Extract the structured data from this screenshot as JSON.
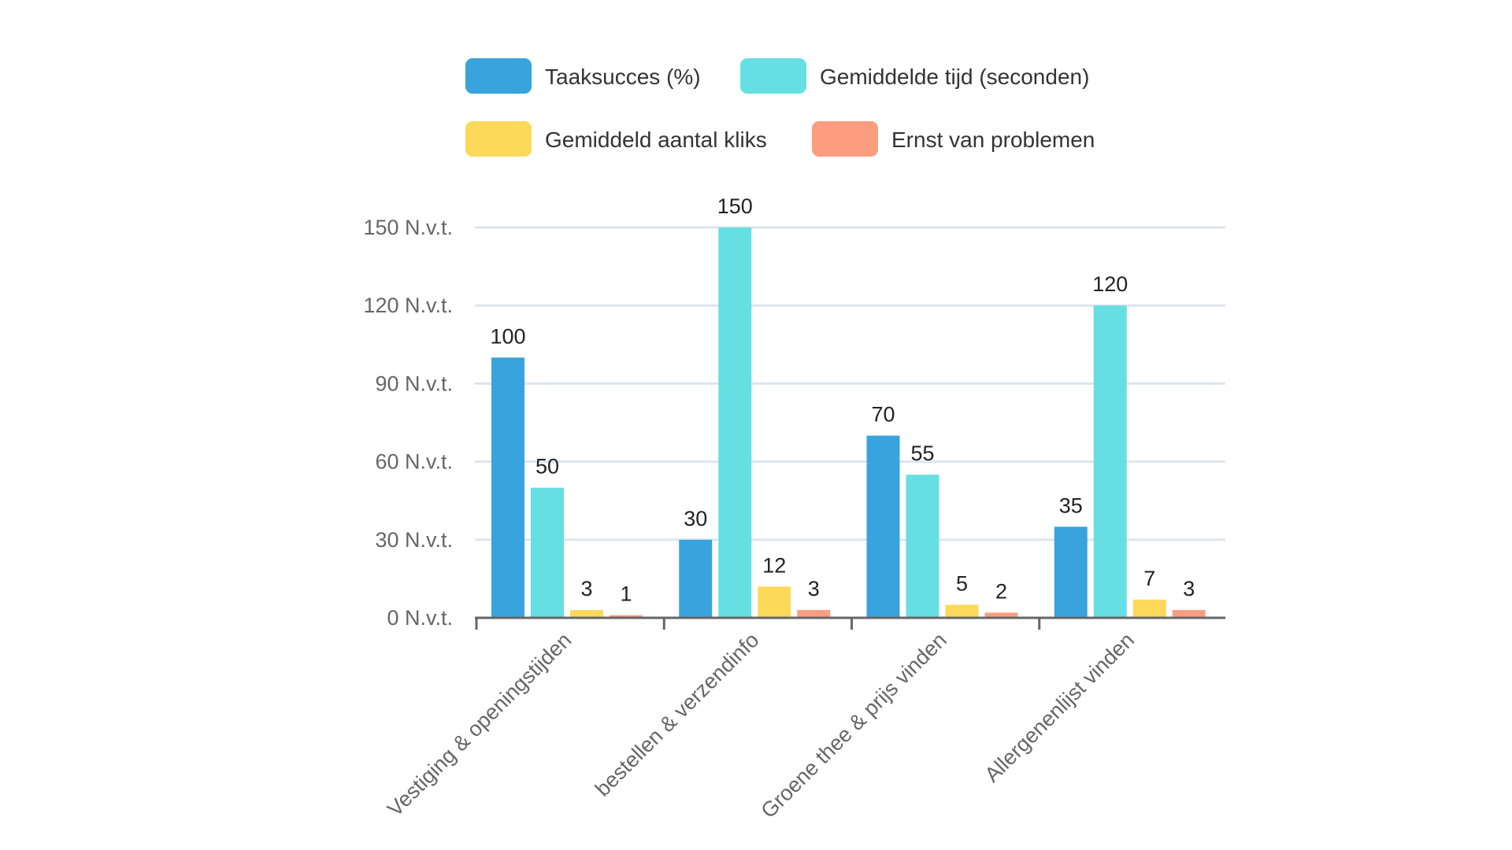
{
  "chart_data": {
    "type": "bar",
    "categories": [
      "Vestiging & openingstijden",
      "bestellen & verzendinfo",
      "Groene thee & prijs vinden",
      "Allergenenlijst vinden"
    ],
    "series": [
      {
        "name": "Taaksucces (%)",
        "color": "#38a3dc",
        "values": [
          100,
          30,
          70,
          35
        ]
      },
      {
        "name": "Gemiddelde tijd (seconden)",
        "color": "#66dfe2",
        "values": [
          50,
          150,
          55,
          120
        ]
      },
      {
        "name": "Gemiddeld aantal kliks",
        "color": "#fdd95a",
        "values": [
          3,
          12,
          5,
          7
        ]
      },
      {
        "name": "Ernst van problemen",
        "color": "#fd9d80",
        "values": [
          1,
          3,
          2,
          3
        ]
      }
    ],
    "yticks": [
      "0 N.v.t.",
      "30 N.v.t.",
      "60 N.v.t.",
      "90 N.v.t.",
      "120 N.v.t.",
      "150 N.v.t."
    ],
    "ylim": [
      0,
      150
    ],
    "grid": true,
    "legend": "top",
    "data_labels": true
  }
}
